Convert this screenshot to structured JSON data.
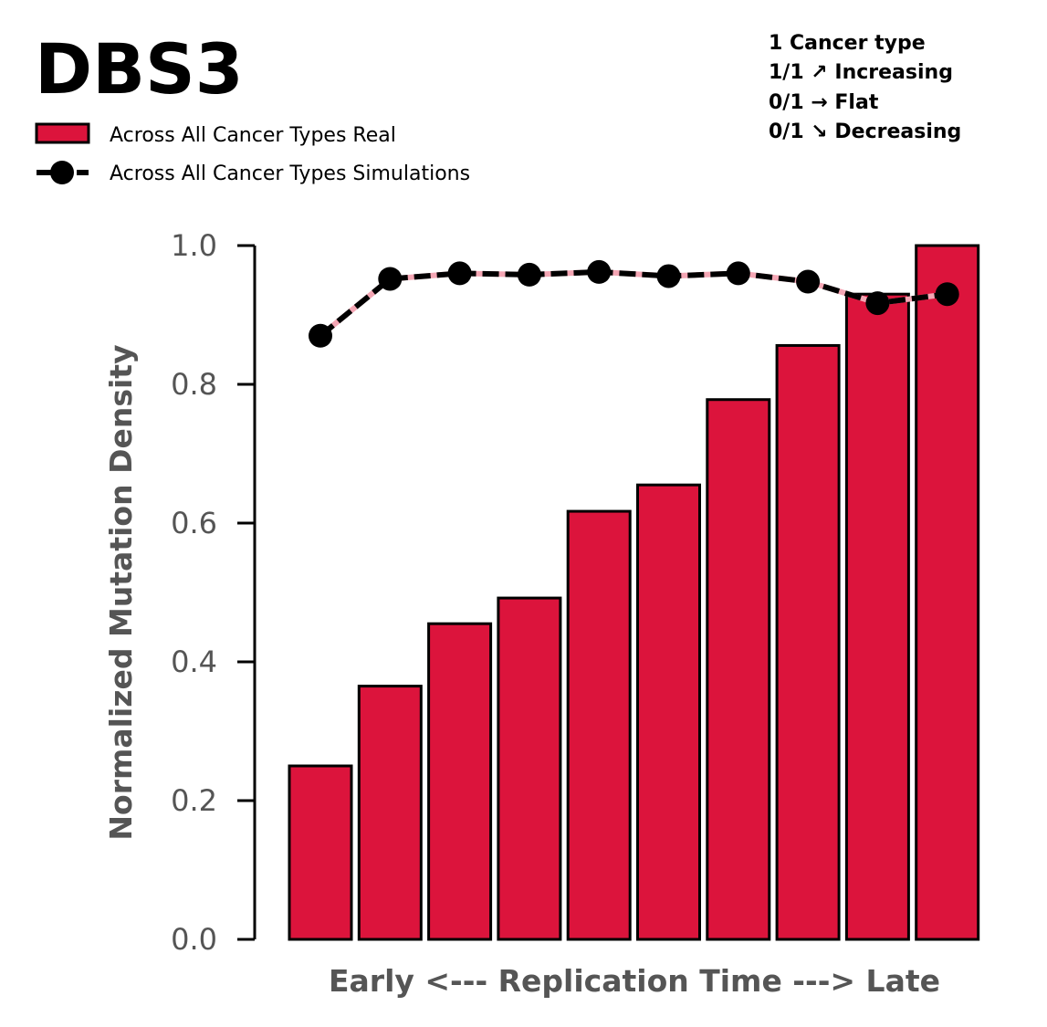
{
  "colors": {
    "bar_fill": "#dc143c",
    "bar_edge": "#000000",
    "sim_line": "#000000",
    "sim_band": "#f4a6b4",
    "axis_text": "#555555"
  },
  "chart_data": {
    "type": "bar",
    "title": "DBS3",
    "xlabel": "Early <--- Replication Time ---> Late",
    "ylabel": "Normalized Mutation Density",
    "ylim": [
      0.0,
      1.0
    ],
    "yticks": [
      {
        "value": 0.0,
        "label": "0.0"
      },
      {
        "value": 0.2,
        "label": "0.2"
      },
      {
        "value": 0.4,
        "label": "0.4"
      },
      {
        "value": 0.6,
        "label": "0.6"
      },
      {
        "value": 0.8,
        "label": "0.8"
      },
      {
        "value": 1.0,
        "label": "1.0"
      }
    ],
    "grid": false,
    "legend_position": "top-left",
    "legend": {
      "real_label": "Across All Cancer Types Real",
      "sim_label": "Across All Cancer Types Simulations"
    },
    "series": [
      {
        "name": "Across All Cancer Types Real",
        "type": "bar",
        "values": [
          0.25,
          0.365,
          0.455,
          0.492,
          0.617,
          0.655,
          0.778,
          0.856,
          0.93,
          1.0
        ]
      },
      {
        "name": "Across All Cancer Types Simulations",
        "type": "line",
        "values": [
          0.87,
          0.952,
          0.96,
          0.958,
          0.962,
          0.956,
          0.96,
          0.948,
          0.917,
          0.93
        ]
      }
    ],
    "annotations": [
      "1 Cancer type",
      "1/1 ↗ Increasing",
      "0/1 → Flat",
      "0/1 ↘ Decreasing"
    ]
  }
}
